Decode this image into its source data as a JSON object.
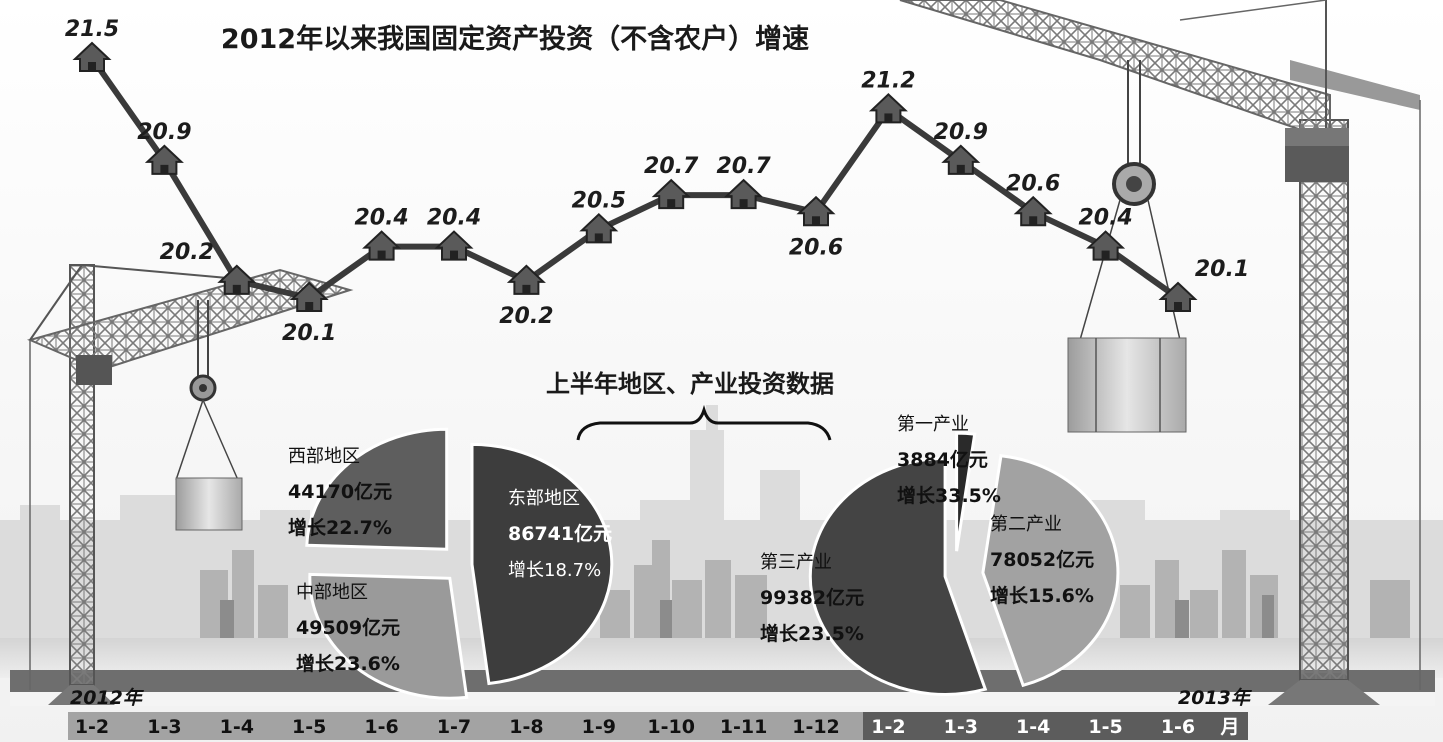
{
  "chart_data": [
    {
      "type": "line",
      "title": "2012年以来我国固定资产投资（不含农户）增速",
      "x": [
        "1-2",
        "1-3",
        "1-4",
        "1-5",
        "1-6",
        "1-7",
        "1-8",
        "1-9",
        "1-10",
        "1-11",
        "1-12",
        "1-2",
        "1-3",
        "1-4",
        "1-5",
        "1-6"
      ],
      "values": [
        21.5,
        20.9,
        20.2,
        20.1,
        20.4,
        20.4,
        20.2,
        20.5,
        20.7,
        20.7,
        20.6,
        21.2,
        20.9,
        20.6,
        20.4,
        20.1
      ],
      "value_labels": [
        "21.5",
        "20.9",
        "20.2",
        "20.1",
        "20.4",
        "20.4",
        "20.2",
        "20.5",
        "20.7",
        "20.7",
        "20.6",
        "21.2",
        "20.9",
        "20.6",
        "20.4",
        "20.1"
      ],
      "year_labels": [
        "2012年",
        "2013年"
      ],
      "axis_unit": "月",
      "marker": "house",
      "line_color": "#3a3a3a"
    },
    {
      "type": "pie",
      "title": "上半年地区、产业投资数据",
      "group": "地区",
      "slices": [
        {
          "name": "东部地区",
          "amount_label": "86741亿元",
          "growth_label": "增长18.7%",
          "value": 86741,
          "color": "#3d3d3d"
        },
        {
          "name": "中部地区",
          "amount_label": "49509亿元",
          "growth_label": "增长23.6%",
          "value": 49509,
          "color": "#9a9a9a"
        },
        {
          "name": "西部地区",
          "amount_label": "44170亿元",
          "growth_label": "增长22.7%",
          "value": 44170,
          "color": "#5e5e5e"
        }
      ]
    },
    {
      "type": "pie",
      "group": "产业",
      "slices": [
        {
          "name": "第一产业",
          "amount_label": "3884亿元",
          "growth_label": "增长33.5%",
          "value": 3884,
          "color": "#2a2a2a"
        },
        {
          "name": "第二产业",
          "amount_label": "78052亿元",
          "growth_label": "增长15.6%",
          "value": 78052,
          "color": "#a2a2a2"
        },
        {
          "name": "第三产业",
          "amount_label": "99382亿元",
          "growth_label": "增长23.5%",
          "value": 99382,
          "color": "#444444"
        }
      ]
    }
  ]
}
